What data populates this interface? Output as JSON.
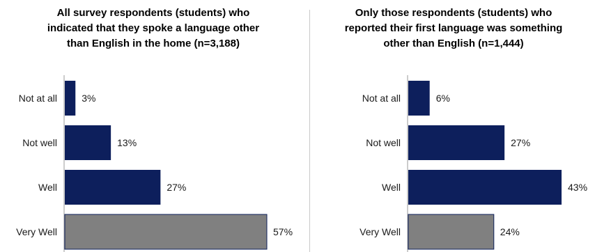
{
  "colors": {
    "bar": "#0d1f5c",
    "highlight": "#808080",
    "axis": "#9a9a9a"
  },
  "chart_data": [
    {
      "type": "bar",
      "orientation": "horizontal",
      "title_lines": [
        "All survey respondents (students) who",
        "indicated that they spoke a language other",
        "than English in the home (n=3,188)"
      ],
      "categories": [
        "Not at all",
        "Not well",
        "Well",
        "Very Well"
      ],
      "values": [
        3,
        13,
        27,
        57
      ],
      "value_labels": [
        "3%",
        "13%",
        "27%",
        "57%"
      ],
      "highlight_index": 3,
      "xlim": [
        0,
        57
      ]
    },
    {
      "type": "bar",
      "orientation": "horizontal",
      "title_lines": [
        "Only those respondents (students) who",
        "reported their first language was something",
        "other than English (n=1,444)"
      ],
      "categories": [
        "Not at all",
        "Not well",
        "Well",
        "Very Well"
      ],
      "values": [
        6,
        27,
        43,
        24
      ],
      "value_labels": [
        "6%",
        "27%",
        "43%",
        "24%"
      ],
      "highlight_index": 3,
      "xlim": [
        0,
        43
      ]
    }
  ]
}
